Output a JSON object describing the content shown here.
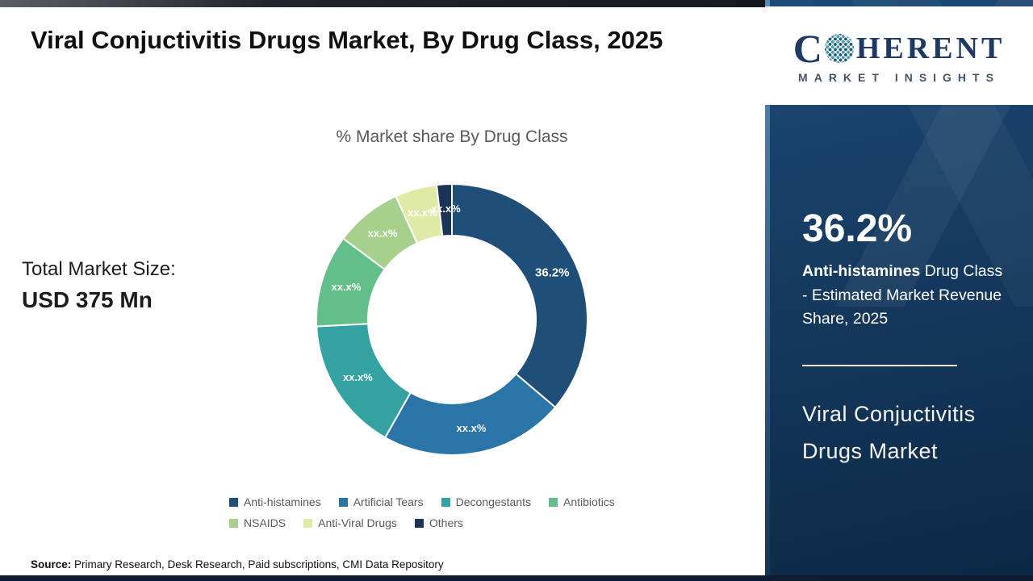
{
  "slide": {
    "title": "Viral Conjuctivitis Drugs Market, By Drug Class, 2025",
    "total_label": "Total Market Size:",
    "total_value": "USD 375 Mn",
    "source_label": "Source:",
    "source_text": " Primary Research, Desk Research, Paid subscriptions, CMI Data Repository"
  },
  "sidebar": {
    "logo": {
      "brand_c": "C",
      "brand_rest": "HERENT",
      "subtitle": "MARKET INSIGHTS"
    },
    "stat_value": "36.2%",
    "stat_bold": "Anti-histamines",
    "stat_rest": " Drug Class - Estimated Market Revenue Share, 2025",
    "panel_title": "Viral Conjuctivitis Drugs Market"
  },
  "chart_data": {
    "type": "pie",
    "donut": true,
    "inner_radius_ratio": 0.62,
    "start_angle": "top",
    "direction": "clockwise",
    "title": "% Market share By Drug Class",
    "legend_position": "bottom",
    "categories": [
      "Anti-histamines",
      "Artificial Tears",
      "Decongestants",
      "Antibiotics",
      "NSAIDS",
      "Anti-Viral Drugs",
      "Others"
    ],
    "values": [
      36.2,
      22.0,
      16.0,
      11.0,
      8.0,
      5.0,
      1.8
    ],
    "value_labels": [
      "36.2%",
      "xx.x%",
      "xx.x%",
      "xx.x%",
      "xx.x%",
      "xx.x%",
      "xx.x%"
    ],
    "colors": [
      "#1f4e79",
      "#2b74a8",
      "#35a2a2",
      "#63bf8a",
      "#a8d08d",
      "#dfeaa5",
      "#1b3357"
    ]
  }
}
